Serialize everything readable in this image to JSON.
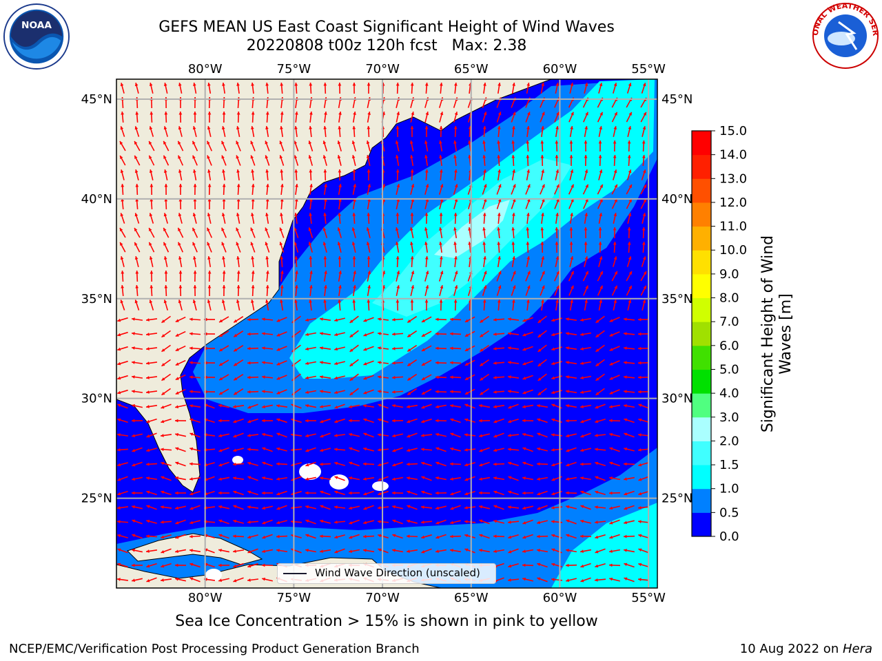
{
  "header": {
    "title_line1": "GEFS MEAN US East Coast Significant Height of Wind Waves",
    "title_line2": "20220808 t00z 120h fcst   Max: 2.38"
  },
  "logos": {
    "left": {
      "icon": "noaa-logo-icon",
      "text": "NOAA"
    },
    "right": {
      "icon": "national-weather-service-logo-icon",
      "text": "NATIONAL WEATHER SERVICE"
    }
  },
  "map": {
    "lon_labels": [
      "80°W",
      "75°W",
      "70°W",
      "65°W",
      "60°W",
      "55°W"
    ],
    "lat_labels": [
      "45°N",
      "40°N",
      "35°N",
      "30°N",
      "25°N"
    ],
    "lon_range": [
      -85,
      -54.5
    ],
    "lat_range": [
      20.5,
      46
    ],
    "legend_label": "Wind Wave Direction (unscaled)",
    "arrow_color": "#ff0000",
    "land_color": "#efecdc",
    "gridline_color": "#b0b0b0"
  },
  "colorbar": {
    "label": "Significant Height of Wind Waves [m]",
    "ticks": [
      "0.0",
      "0.5",
      "1.0",
      "1.5",
      "2.0",
      "3.0",
      "4.0",
      "5.0",
      "6.0",
      "7.0",
      "8.0",
      "9.0",
      "10.0",
      "11.0",
      "12.0",
      "13.0",
      "14.0",
      "15.0"
    ],
    "colors": [
      "#0000ff",
      "#0080ff",
      "#00ffff",
      "#40ffff",
      "#aaffff",
      "#50ff80",
      "#00e000",
      "#40e000",
      "#a0e000",
      "#d0ff00",
      "#ffff00",
      "#ffe000",
      "#ffb000",
      "#ff8000",
      "#ff5000",
      "#ff2000",
      "#ff0000"
    ]
  },
  "notes": {
    "ice": "Sea Ice Concentration > 15% is shown in pink to yellow",
    "producer": "NCEP/EMC/Verification Post Processing Product Generation Branch",
    "date": "10 Aug 2022 on ",
    "machine": "Hera"
  }
}
